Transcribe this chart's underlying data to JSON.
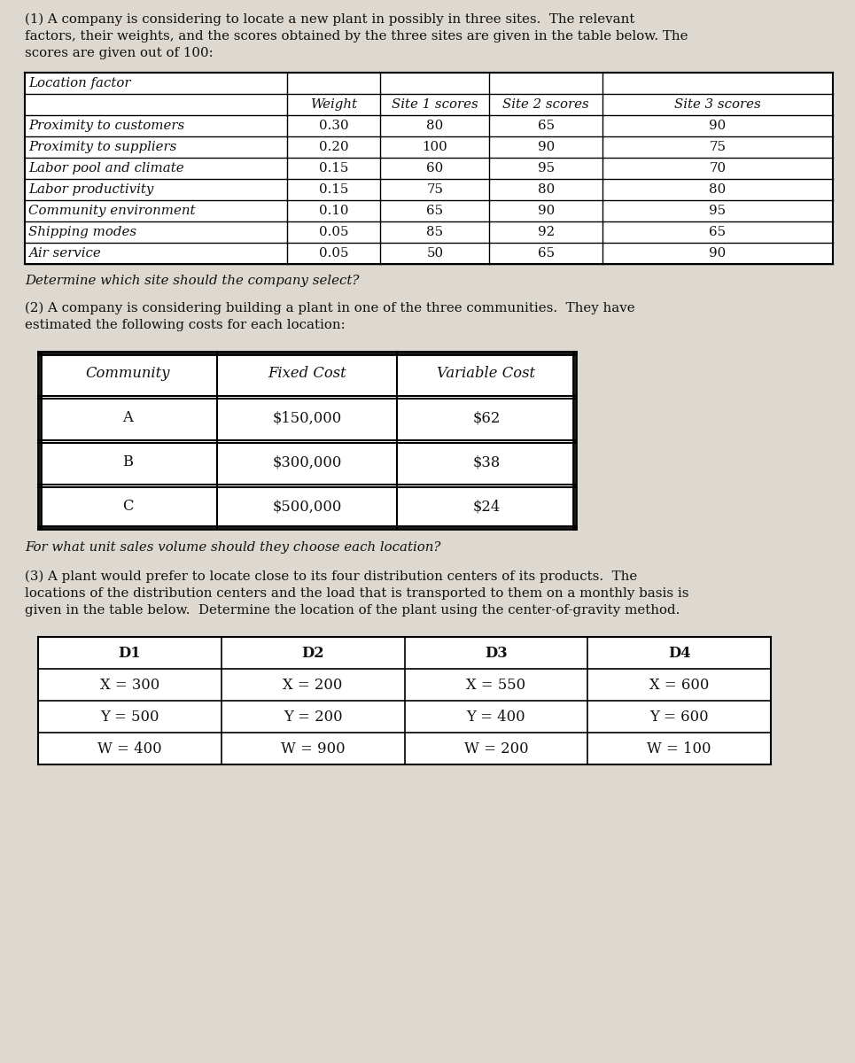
{
  "background_color": "#c8c0b8",
  "page_color": "#e8e4de",
  "text_color": "#111111",
  "para1_line1": "(1) A company is considering to locate a new plant in possibly in three sites.  The relevant",
  "para1_line2": "factors, their weights, and the scores obtained by the three sites are given in the table below. The",
  "para1_line3": "scores are given out of 100:",
  "table1_header_row1": [
    "Location factor",
    "",
    "",
    "",
    ""
  ],
  "table1_header_row2": [
    "",
    "Weight",
    "Site 1 scores",
    "Site 2 scores",
    "Site 3 scores"
  ],
  "table1_rows": [
    [
      "Proximity to customers",
      "0.30",
      "80",
      "65",
      "90"
    ],
    [
      "Proximity to suppliers",
      "0.20",
      "100",
      "90",
      "75"
    ],
    [
      "Labor pool and climate",
      "0.15",
      "60",
      "95",
      "70"
    ],
    [
      "Labor productivity",
      "0.15",
      "75",
      "80",
      "80"
    ],
    [
      "Community environment",
      "0.10",
      "65",
      "90",
      "95"
    ],
    [
      "Shipping modes",
      "0.05",
      "85",
      "92",
      "65"
    ],
    [
      "Air service",
      "0.05",
      "50",
      "65",
      "90"
    ]
  ],
  "para1_end": "Determine which site should the company select?",
  "para2_line1": "(2) A company is considering building a plant in one of the three communities.  They have",
  "para2_line2": "estimated the following costs for each location:",
  "table2_headers": [
    "Community",
    "Fixed Cost",
    "Variable Cost"
  ],
  "table2_rows": [
    [
      "A",
      "$150,000",
      "$62"
    ],
    [
      "B",
      "$300,000",
      "$38"
    ],
    [
      "C",
      "$500,000",
      "$24"
    ]
  ],
  "para2_end": "For what unit sales volume should they choose each location?",
  "para3_line1": "(3) A plant would prefer to locate close to its four distribution centers of its products.  The",
  "para3_line2": "locations of the distribution centers and the load that is transported to them on a monthly basis is",
  "para3_line3": "given in the table below.  Determine the location of the plant using the center-of-gravity method.",
  "table3_headers": [
    "D1",
    "D2",
    "D3",
    "D4"
  ],
  "table3_rows": [
    [
      "X = 300",
      "X = 200",
      "X = 550",
      "X = 600"
    ],
    [
      "Y = 500",
      "Y = 200",
      "Y = 400",
      "Y = 600"
    ],
    [
      "W = 400",
      "W = 900",
      "W = 200",
      "W = 100"
    ]
  ],
  "fs_body": 10.8,
  "fs_table": 10.8
}
